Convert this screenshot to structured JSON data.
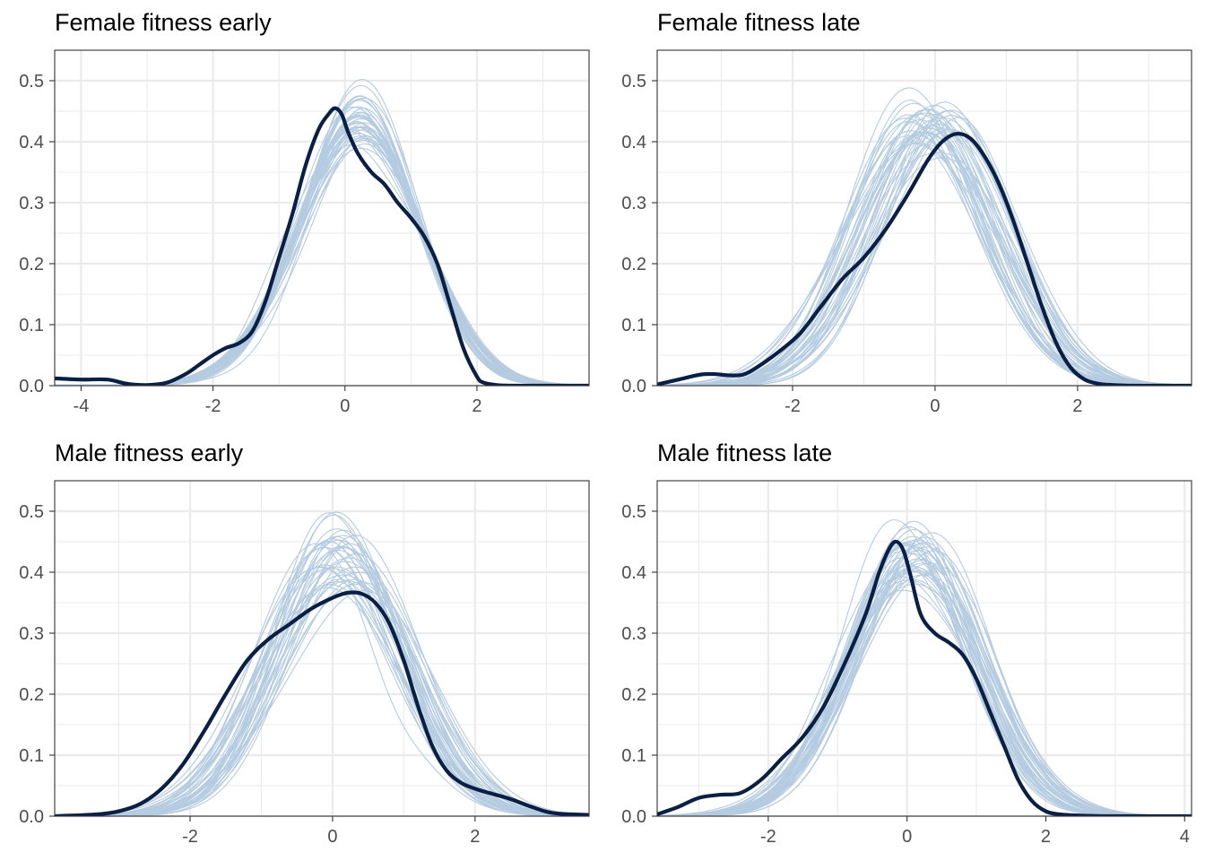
{
  "colors": {
    "observed": "#0a1f44",
    "replicates": "#b4cbe0",
    "grid": "#ebebeb",
    "axis_text": "#4d4d4d"
  },
  "chart_data": [
    {
      "type": "line",
      "title": "Female fitness early",
      "xlim": [
        -4.4,
        3.7
      ],
      "ylim": [
        0,
        0.55
      ],
      "xticks": [
        -4,
        -2,
        0,
        2
      ],
      "xtick_labels": [
        "-4",
        "-2",
        "0",
        "2"
      ],
      "yticks": [
        0,
        0.1,
        0.2,
        0.3,
        0.4,
        0.5
      ],
      "ytick_labels": [
        "0.0",
        "0.1",
        "0.2",
        "0.3",
        "0.4",
        "0.5"
      ],
      "replicates": {
        "count": 40,
        "mean": [
          0.15,
          0.25
        ],
        "sd": [
          0.86,
          0.98
        ],
        "skew": [
          -0.15,
          0.05
        ],
        "tail_end": 3.5
      },
      "observed": {
        "x": [
          -4.4,
          -4.0,
          -3.6,
          -3.3,
          -3.0,
          -2.7,
          -2.4,
          -2.2,
          -2.0,
          -1.8,
          -1.6,
          -1.4,
          -1.2,
          -1.0,
          -0.8,
          -0.6,
          -0.4,
          -0.25,
          -0.15,
          -0.05,
          0.05,
          0.2,
          0.4,
          0.6,
          0.8,
          1.0,
          1.2,
          1.4,
          1.6,
          1.8,
          2.0,
          2.1,
          2.3,
          2.6,
          3.0,
          3.7
        ],
        "y": [
          0.012,
          0.01,
          0.01,
          0.003,
          0.001,
          0.005,
          0.02,
          0.035,
          0.05,
          0.062,
          0.07,
          0.09,
          0.14,
          0.21,
          0.28,
          0.36,
          0.42,
          0.445,
          0.455,
          0.445,
          0.415,
          0.38,
          0.35,
          0.33,
          0.3,
          0.275,
          0.245,
          0.2,
          0.13,
          0.06,
          0.015,
          0.005,
          0.001,
          0,
          0,
          0
        ]
      }
    },
    {
      "type": "line",
      "title": "Female fitness late",
      "xlim": [
        -3.9,
        3.6
      ],
      "ylim": [
        0,
        0.55
      ],
      "xticks": [
        -2,
        0,
        2
      ],
      "xtick_labels": [
        "-2",
        "0",
        "2"
      ],
      "yticks": [
        0,
        0.1,
        0.2,
        0.3,
        0.4,
        0.5
      ],
      "ytick_labels": [
        "0.0",
        "0.1",
        "0.2",
        "0.3",
        "0.4",
        "0.5"
      ],
      "replicates": {
        "count": 40,
        "mean": [
          -0.35,
          0.25
        ],
        "sd": [
          0.86,
          1.02
        ],
        "skew": [
          -0.15,
          0.15
        ],
        "tail_end": 3.6
      },
      "observed": {
        "x": [
          -3.9,
          -3.6,
          -3.3,
          -3.1,
          -2.9,
          -2.7,
          -2.5,
          -2.2,
          -1.9,
          -1.6,
          -1.3,
          -1.0,
          -0.7,
          -0.4,
          -0.1,
          0.1,
          0.3,
          0.5,
          0.7,
          0.9,
          1.1,
          1.3,
          1.5,
          1.7,
          1.9,
          2.1,
          2.3,
          2.5,
          2.8,
          3.2,
          3.6
        ],
        "y": [
          0.002,
          0.01,
          0.018,
          0.019,
          0.017,
          0.018,
          0.03,
          0.055,
          0.085,
          0.13,
          0.175,
          0.21,
          0.255,
          0.31,
          0.37,
          0.4,
          0.413,
          0.405,
          0.375,
          0.33,
          0.27,
          0.2,
          0.13,
          0.07,
          0.03,
          0.01,
          0.003,
          0.001,
          0,
          0,
          0
        ]
      }
    },
    {
      "type": "line",
      "title": "Male fitness early",
      "xlim": [
        -3.9,
        3.6
      ],
      "ylim": [
        0,
        0.55
      ],
      "xticks": [
        -2,
        0,
        2
      ],
      "xtick_labels": [
        "-2",
        "0",
        "2"
      ],
      "yticks": [
        0,
        0.1,
        0.2,
        0.3,
        0.4,
        0.5
      ],
      "ytick_labels": [
        "0.0",
        "0.1",
        "0.2",
        "0.3",
        "0.4",
        "0.5"
      ],
      "replicates": {
        "count": 40,
        "mean": [
          -0.2,
          0.35
        ],
        "sd": [
          0.82,
          1.05
        ],
        "skew": [
          -0.1,
          0.1
        ],
        "tail_end": 3.6
      },
      "observed": {
        "x": [
          -3.9,
          -3.3,
          -3.0,
          -2.7,
          -2.4,
          -2.1,
          -1.8,
          -1.5,
          -1.2,
          -0.9,
          -0.6,
          -0.3,
          0.0,
          0.2,
          0.4,
          0.6,
          0.8,
          1.0,
          1.2,
          1.4,
          1.6,
          1.8,
          2.0,
          2.2,
          2.5,
          2.8,
          3.1,
          3.6
        ],
        "y": [
          0,
          0.003,
          0.008,
          0.02,
          0.045,
          0.085,
          0.14,
          0.2,
          0.255,
          0.29,
          0.315,
          0.34,
          0.358,
          0.366,
          0.365,
          0.35,
          0.315,
          0.255,
          0.18,
          0.115,
          0.075,
          0.055,
          0.045,
          0.038,
          0.028,
          0.015,
          0.005,
          0.002
        ]
      }
    },
    {
      "type": "line",
      "title": "Male fitness late",
      "xlim": [
        -3.6,
        4.1
      ],
      "ylim": [
        0,
        0.55
      ],
      "xticks": [
        -2,
        0,
        2,
        4
      ],
      "xtick_labels": [
        "-2",
        "0",
        "2",
        "4"
      ],
      "yticks": [
        0,
        0.1,
        0.2,
        0.3,
        0.4,
        0.5
      ],
      "ytick_labels": [
        "0.0",
        "0.1",
        "0.2",
        "0.3",
        "0.4",
        "0.5"
      ],
      "replicates": {
        "count": 40,
        "mean": [
          -0.1,
          0.3
        ],
        "sd": [
          0.85,
          1.0
        ],
        "skew": [
          -0.1,
          0.1
        ],
        "tail_end": 4.0
      },
      "observed": {
        "x": [
          -3.6,
          -3.3,
          -3.0,
          -2.7,
          -2.4,
          -2.1,
          -1.8,
          -1.5,
          -1.2,
          -0.9,
          -0.6,
          -0.4,
          -0.25,
          -0.15,
          -0.05,
          0.05,
          0.2,
          0.4,
          0.6,
          0.8,
          1.0,
          1.2,
          1.4,
          1.6,
          1.8,
          2.0,
          2.2,
          2.5,
          2.9,
          3.4,
          4.1
        ],
        "y": [
          0.003,
          0.015,
          0.03,
          0.035,
          0.038,
          0.06,
          0.095,
          0.13,
          0.18,
          0.25,
          0.33,
          0.4,
          0.44,
          0.45,
          0.435,
          0.395,
          0.33,
          0.3,
          0.285,
          0.265,
          0.225,
          0.17,
          0.115,
          0.06,
          0.025,
          0.008,
          0.003,
          0.001,
          0,
          0,
          0
        ]
      }
    }
  ]
}
